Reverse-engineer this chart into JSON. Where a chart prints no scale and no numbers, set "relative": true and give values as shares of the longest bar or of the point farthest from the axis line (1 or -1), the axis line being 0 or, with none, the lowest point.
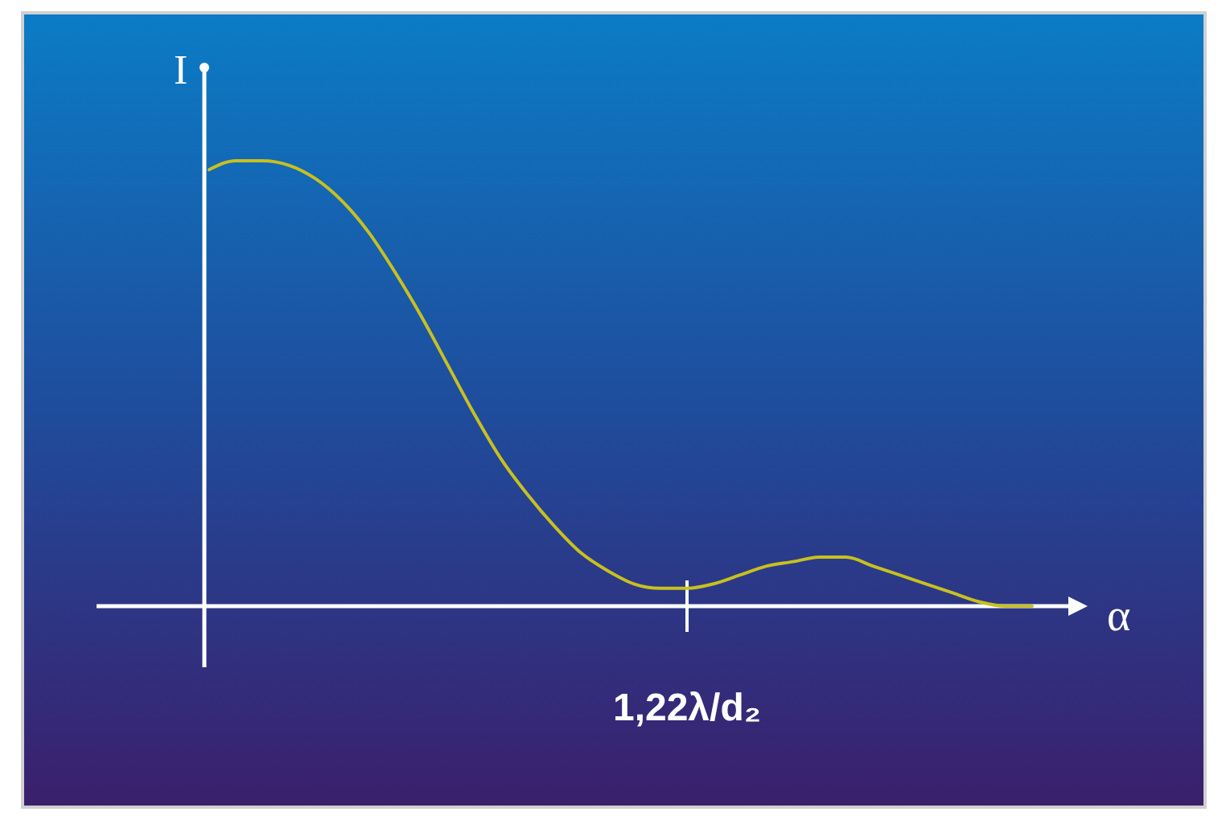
{
  "chart_data": {
    "type": "line",
    "relative": true,
    "annotations": [
      "1,22λ/d₂"
    ],
    "xlabel": "α",
    "ylabel": "I",
    "categories": [
      null,
      null,
      null,
      null,
      null,
      null,
      null,
      null,
      null,
      null,
      null,
      null,
      null,
      null,
      null,
      null,
      null,
      null,
      null,
      null,
      null,
      null,
      null,
      null,
      null,
      null,
      null,
      null,
      null,
      null,
      null,
      null
    ],
    "series": [
      {
        "color": "#c8c020",
        "values": [
          0.98,
          1.0,
          1.0,
          0.99,
          0.96,
          0.91,
          0.84,
          0.75,
          0.65,
          0.54,
          0.43,
          0.33,
          0.25,
          0.18,
          0.12,
          0.08,
          0.05,
          0.04,
          0.04,
          0.05,
          0.07,
          0.09,
          0.1,
          0.11,
          0.11,
          0.09,
          0.07,
          0.05,
          0.03,
          0.01,
          0,
          0
        ]
      }
    ]
  }
}
